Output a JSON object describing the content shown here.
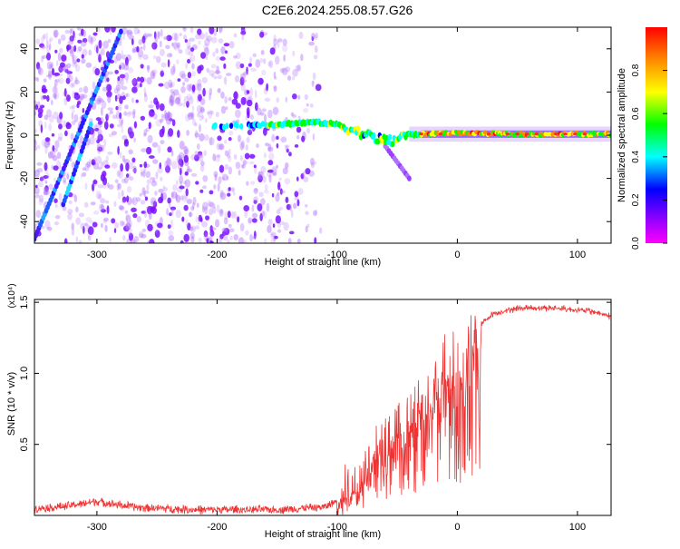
{
  "page": {
    "title": "C2E6.2024.255.08.57.G26"
  },
  "chart_data": [
    {
      "type": "heatmap",
      "xlabel": "Height of straight line (km)",
      "ylabel": "Frequency (Hz)",
      "xlim": [
        -352,
        128
      ],
      "ylim": [
        -50,
        50
      ],
      "x_ticks": [
        -300,
        -200,
        -100,
        0,
        100
      ],
      "x_tick_labels": [
        "-300",
        "-200",
        "-100",
        "0",
        "100"
      ],
      "y_ticks": [
        -40,
        -20,
        0,
        20,
        40
      ],
      "y_tick_labels": [
        "-40",
        "-20",
        "0",
        "20",
        "40"
      ],
      "colorbar": {
        "label": "Normalized spectral amplitude",
        "range": [
          0,
          1
        ],
        "ticks": [
          0.0,
          0.2,
          0.4,
          0.6,
          0.8
        ],
        "tick_labels": [
          "0.0",
          "0.2",
          "0.4",
          "0.6",
          "0.8"
        ],
        "colors": [
          "#ff00ff",
          "#8800ff",
          "#0000ff",
          "#00ffff",
          "#00ff00",
          "#ffff00",
          "#ff8800",
          "#ff0000"
        ]
      },
      "features": {
        "noise_region_x": [
          -352,
          -110
        ],
        "main_trace": [
          [
            -205,
            4
          ],
          [
            -150,
            5
          ],
          [
            -120,
            6
          ],
          [
            -100,
            5
          ],
          [
            -85,
            2
          ],
          [
            -70,
            -1
          ],
          [
            -55,
            -3
          ],
          [
            -45,
            0
          ],
          [
            -30,
            0.5
          ],
          [
            -10,
            1
          ],
          [
            0,
            1
          ],
          [
            50,
            0.5
          ],
          [
            128,
            0.5
          ]
        ],
        "diagonal_trace_1": [
          [
            -352,
            -48
          ],
          [
            -280,
            48
          ]
        ],
        "diagonal_trace_2": [
          [
            -328,
            -32
          ],
          [
            -305,
            5
          ]
        ],
        "tail_trace": [
          [
            -60,
            -5
          ],
          [
            -40,
            -20
          ]
        ]
      }
    },
    {
      "type": "line",
      "xlabel": "Height of straight line (km)",
      "ylabel": "SNR (10 * v/v)",
      "y_multiplier_label": "(x10⁴)",
      "xlim": [
        -352,
        128
      ],
      "ylim": [
        0.0,
        1.52
      ],
      "x_ticks": [
        -300,
        -200,
        -100,
        0,
        100
      ],
      "x_tick_labels": [
        "-300",
        "-200",
        "-100",
        "0",
        "100"
      ],
      "y_ticks": [
        0.5,
        1.0,
        1.5
      ],
      "y_tick_labels": [
        "0.5",
        "1.0",
        "1.5"
      ],
      "color": "#ee3333",
      "envelope": {
        "x": [
          -352,
          -330,
          -300,
          -270,
          -220,
          -150,
          -110,
          -90,
          -80,
          -70,
          -50,
          -30,
          -15,
          0,
          10,
          20,
          30,
          50,
          80,
          110,
          128
        ],
        "y": [
          0.05,
          0.06,
          0.1,
          0.06,
          0.04,
          0.04,
          0.06,
          0.15,
          0.25,
          0.45,
          0.55,
          0.75,
          0.95,
          1.05,
          1.2,
          1.35,
          1.42,
          1.46,
          1.46,
          1.44,
          1.4
        ]
      }
    }
  ]
}
